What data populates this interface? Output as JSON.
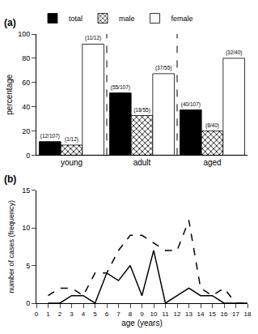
{
  "chart_data": [
    {
      "type": "bar",
      "title": "(a)",
      "categories": [
        "young",
        "adult",
        "aged"
      ],
      "series": [
        {
          "name": "total",
          "color": "black",
          "values": [
            11.21,
            51.4,
            37.38
          ],
          "value_labels": [
            "(12/107)",
            "(55/107)",
            "(40/107)"
          ]
        },
        {
          "name": "male",
          "color": "white",
          "marker": "crosshatch",
          "values": [
            8.33,
            32.73,
            20.0
          ],
          "value_labels": [
            "(1/12)",
            "(18/55)",
            "(8/40)"
          ]
        },
        {
          "name": "female",
          "color": "white",
          "values": [
            91.67,
            67.27,
            80.0
          ],
          "value_labels": [
            "(11/12)",
            "(37/55)",
            "(32/40)"
          ]
        }
      ],
      "ylabel": "percentage",
      "ylim": [
        0,
        100
      ],
      "yticks": [
        0,
        20,
        40,
        60,
        80,
        100
      ],
      "legend": "upper left",
      "grid": false
    },
    {
      "type": "line",
      "title": "(b)",
      "x": [
        1,
        2,
        3,
        4,
        5,
        6,
        7,
        8,
        9,
        10,
        11,
        12,
        13,
        14,
        15,
        16,
        17,
        18
      ],
      "series": [
        {
          "color": "black",
          "line_style": "solid",
          "values": [
            0,
            0,
            1,
            1,
            0,
            4,
            3,
            5,
            1,
            7,
            0,
            1,
            2,
            1,
            1,
            0,
            0,
            0
          ]
        },
        {
          "color": "black",
          "line_style": "dashed",
          "values": [
            1,
            2,
            2,
            1,
            4,
            4,
            7,
            9,
            9,
            8,
            7,
            7,
            11,
            2,
            1,
            2,
            0,
            0
          ]
        }
      ],
      "xlabel": "age (years)",
      "ylabel": "number of cases (frequency)",
      "xlim": [
        0,
        18
      ],
      "xticks": [
        0,
        1,
        2,
        3,
        4,
        5,
        6,
        7,
        8,
        9,
        10,
        11,
        12,
        13,
        14,
        15,
        16,
        17,
        18
      ],
      "ylim": [
        0,
        15
      ],
      "yticks": [
        0,
        5,
        10,
        15
      ],
      "grid": false
    }
  ]
}
